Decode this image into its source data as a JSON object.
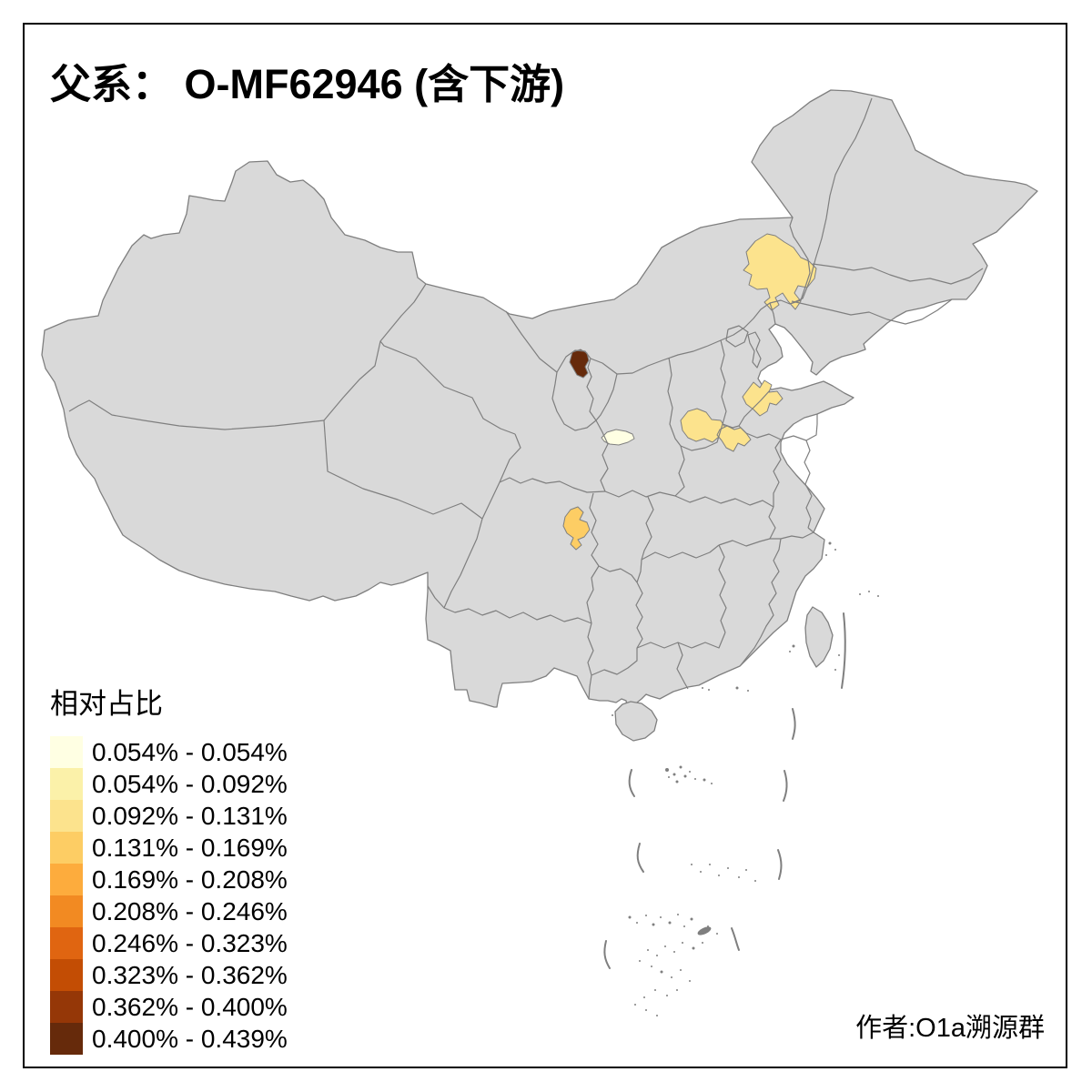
{
  "title": {
    "text": "父系： O-MF62946 (含下游)"
  },
  "legend": {
    "title": "相对占比",
    "classes": [
      {
        "label": "0.054% - 0.054%",
        "color": "#FFFFE3"
      },
      {
        "label": "0.054% - 0.092%",
        "color": "#FBF1A9"
      },
      {
        "label": "0.092% - 0.131%",
        "color": "#FCE38D"
      },
      {
        "label": "0.131% - 0.169%",
        "color": "#FDCD64"
      },
      {
        "label": "0.169% - 0.208%",
        "color": "#FDAC3D"
      },
      {
        "label": "0.208% - 0.246%",
        "color": "#F28A22"
      },
      {
        "label": "0.246% - 0.323%",
        "color": "#E06511"
      },
      {
        "label": "0.323% - 0.362%",
        "color": "#C34D04"
      },
      {
        "label": "0.362% - 0.400%",
        "color": "#953707"
      },
      {
        "label": "0.400% - 0.439%",
        "color": "#662A0B"
      }
    ]
  },
  "attribution": {
    "text": "作者:O1a溯源群"
  },
  "map": {
    "background": "#FFFFFF",
    "base_fill": "#D9D9D9",
    "border_color": "#7F7F7F",
    "frame_color": "#000000",
    "regions": [
      {
        "name": "east-inner-mongolia",
        "class_index": 2
      },
      {
        "name": "north-ningxia",
        "class_index": 9
      },
      {
        "name": "central-shaanxi",
        "class_index": 0
      },
      {
        "name": "west-henan",
        "class_index": 1
      },
      {
        "name": "north-central-henan",
        "class_index": 2
      },
      {
        "name": "southeast-central-henan",
        "class_index": 2
      },
      {
        "name": "hebei-shandong-border",
        "class_index": 2
      },
      {
        "name": "east-sichuan",
        "class_index": 3
      }
    ]
  }
}
